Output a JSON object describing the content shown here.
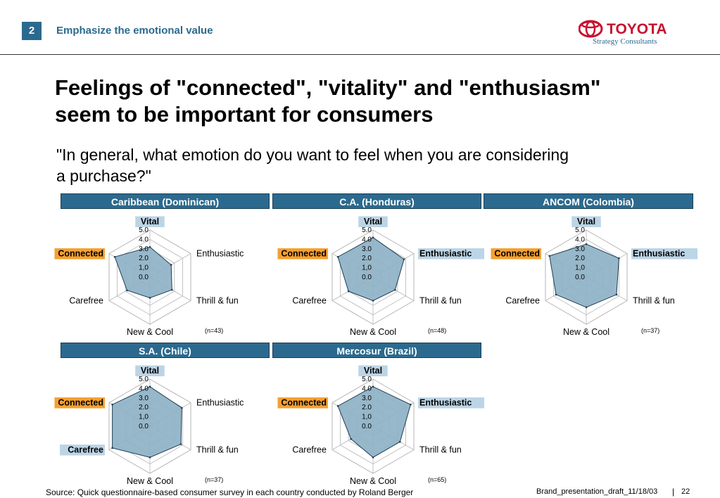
{
  "header": {
    "slide_number": "2",
    "section_title": "Emphasize the emotional value",
    "logo_text": "TOYOTA",
    "logo_subtext": "Strategy Consultants"
  },
  "headline_lines": [
    "Feelings of \"connected\", \"vitality\" and \"enthusiasm\"",
    "seem to be important for consumers"
  ],
  "question_lines": [
    "\"In general, what emotion do you want to feel when you are considering",
    "a purchase?\""
  ],
  "colors": {
    "accent": "#2b6a8e",
    "highlight_orange": "#f5a031",
    "highlight_blue": "#bcd5e6",
    "fill": "#8eb2c6"
  },
  "chart_data": [
    {
      "type": "radar",
      "title": "Caribbean (Dominican)",
      "n_label": "(n=43)",
      "axes": [
        "Vital",
        "Enthusiastic",
        "Thrill & fun",
        "New & Cool",
        "Carefree",
        "Connected"
      ],
      "tick_labels": [
        "5.0",
        "4.0",
        "3.0",
        "2.0",
        "1,0",
        "0.0"
      ],
      "range": [
        0,
        5
      ],
      "values": [
        3.2,
        2.6,
        2.7,
        2.2,
        2.8,
        4.3
      ],
      "highlight": {
        "Vital": "blue",
        "Connected": "orange"
      }
    },
    {
      "type": "radar",
      "title": "C.A. (Honduras)",
      "n_label": "(n=48)",
      "axes": [
        "Vital",
        "Enthusiastic",
        "Thrill & fun",
        "New & Cool",
        "Carefree",
        "Connected"
      ],
      "tick_labels": [
        "5.0",
        "4.0",
        "3.0",
        "2.0",
        "1,0",
        "0.0"
      ],
      "range": [
        0,
        5
      ],
      "values": [
        4.2,
        3.8,
        2.7,
        2.5,
        3.0,
        4.3
      ],
      "highlight": {
        "Vital": "blue",
        "Connected": "orange",
        "Enthusiastic": "blue"
      }
    },
    {
      "type": "radar",
      "title": "ANCOM (Colombia)",
      "n_label": "(n=37)",
      "axes": [
        "Vital",
        "Enthusiastic",
        "Thrill & fun",
        "New & Cool",
        "Carefree",
        "Connected"
      ],
      "tick_labels": [
        "5.0",
        "4.0",
        "3.0",
        "2.0",
        "1,0",
        "0.0"
      ],
      "range": [
        0,
        5
      ],
      "values": [
        3.5,
        4.0,
        3.7,
        3.2,
        3.7,
        4.5
      ],
      "highlight": {
        "Vital": "blue",
        "Connected": "orange",
        "Enthusiastic": "blue"
      }
    },
    {
      "type": "radar",
      "title": "S.A. (Chile)",
      "n_label": "(n=37)",
      "axes": [
        "Vital",
        "Enthusiastic",
        "Thrill & fun",
        "New & Cool",
        "Carefree",
        "Connected"
      ],
      "tick_labels": [
        "5.0",
        "4.0",
        "3.0",
        "2.0",
        "1,0",
        "0.0"
      ],
      "range": [
        0,
        5
      ],
      "values": [
        4.2,
        3.9,
        3.8,
        3.3,
        4.6,
        4.6
      ],
      "highlight": {
        "Vital": "blue",
        "Connected": "orange",
        "Carefree": "blue"
      }
    },
    {
      "type": "radar",
      "title": "Mercosur (Brazil)",
      "n_label": "(n=65)",
      "axes": [
        "Vital",
        "Enthusiastic",
        "Thrill & fun",
        "New & Cool",
        "Carefree",
        "Connected"
      ],
      "tick_labels": [
        "5.0",
        "4.0",
        "3.0",
        "2.0",
        "1,0",
        "0.0"
      ],
      "range": [
        0,
        5
      ],
      "values": [
        4.2,
        4.6,
        3.3,
        3.3,
        2.7,
        4.3
      ],
      "highlight": {
        "Vital": "blue",
        "Connected": "orange",
        "Enthusiastic": "blue"
      }
    }
  ],
  "footer": {
    "source": "Source: Quick questionnaire-based consumer survey in each country conducted by Roland Berger",
    "file": "Brand_presentation_draft_11/18/03",
    "separator": "|",
    "page": "22"
  }
}
